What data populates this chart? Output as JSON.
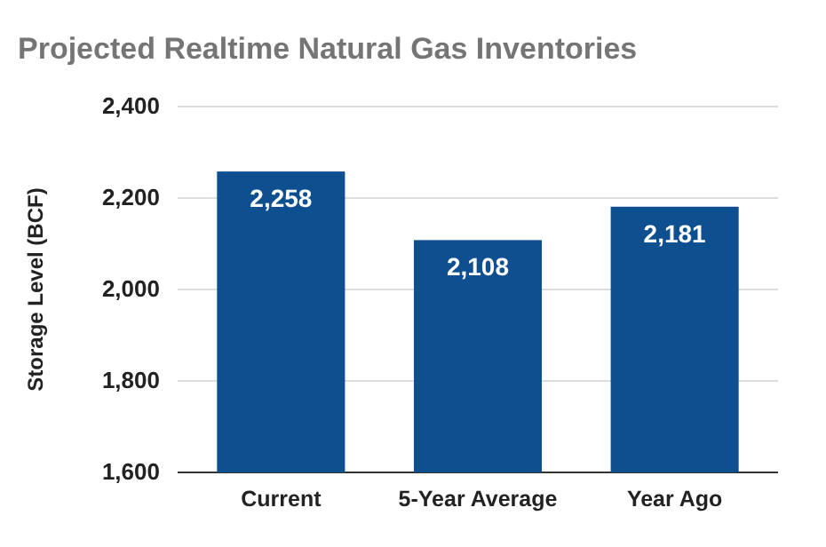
{
  "chart_data": {
    "type": "bar",
    "title": "Projected Realtime Natural Gas Inventories",
    "ylabel": "Storage Level (BCF)",
    "categories": [
      "Current",
      "5-Year Average",
      "Year Ago"
    ],
    "values": [
      2258,
      2108,
      2181
    ],
    "value_labels": [
      "2,258",
      "2,108",
      "2,181"
    ],
    "color": "#0d4f8f",
    "ylim": [
      1600,
      2400
    ],
    "yticks": [
      {
        "value": 1600,
        "label": "1,600"
      },
      {
        "value": 1800,
        "label": "1,800"
      },
      {
        "value": 2000,
        "label": "2,000"
      },
      {
        "value": 2200,
        "label": "2,200"
      },
      {
        "value": 2400,
        "label": "2,400"
      }
    ],
    "grid": "y"
  }
}
